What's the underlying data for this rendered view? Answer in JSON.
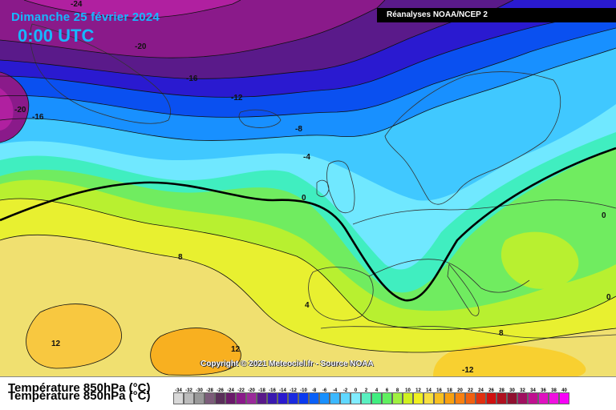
{
  "header": {
    "date": "Dimanche 25 février 2024",
    "time": "0:00 UTC",
    "source": "Réanalyses NOAA/NCEP 2"
  },
  "footer": {
    "copyright": "Copyright © 2021 Meteociel.fr - Source NOAA",
    "field": "Température 850hPa (°C)"
  },
  "isotherm_labels": [
    "-24",
    "-20",
    "-16",
    "-20",
    "-16",
    "-12",
    "-8",
    "-4",
    "0",
    "0",
    "0",
    "8",
    "4",
    "12",
    "12",
    "8",
    "-12"
  ],
  "palette": {
    "land_outline": "#333333",
    "zero_isotherm": "#000000"
  },
  "scale": {
    "ticks": [
      "-34",
      "-32",
      "-30",
      "-28",
      "-26",
      "-24",
      "-22",
      "-20",
      "-18",
      "-16",
      "-14",
      "-12",
      "-10",
      "-8",
      "-6",
      "-4",
      "-2",
      "0",
      "2",
      "4",
      "6",
      "8",
      "10",
      "12",
      "14",
      "16",
      "18",
      "20",
      "22",
      "24",
      "26",
      "28",
      "30",
      "32",
      "34",
      "36",
      "38",
      "40"
    ],
    "colors": [
      "#d8d8d8",
      "#bbbbbb",
      "#999999",
      "#7c5c7a",
      "#5a2f5a",
      "#6a1a6a",
      "#8a1a8a",
      "#9a2a9a",
      "#5a1a8a",
      "#3a1ab0",
      "#2a1ad0",
      "#1a2ae0",
      "#0a3af0",
      "#0a60f8",
      "#1890ff",
      "#3cb8ff",
      "#60d8ff",
      "#80ecff",
      "#5af0c0",
      "#40ee80",
      "#60f060",
      "#a0f040",
      "#d0f020",
      "#f0f020",
      "#f8e040",
      "#f8c020",
      "#f8a010",
      "#f88010",
      "#f06010",
      "#e03010",
      "#d01010",
      "#b01020",
      "#901030",
      "#a01060",
      "#c01090",
      "#e010c0",
      "#f010e0",
      "#f800f8"
    ]
  }
}
